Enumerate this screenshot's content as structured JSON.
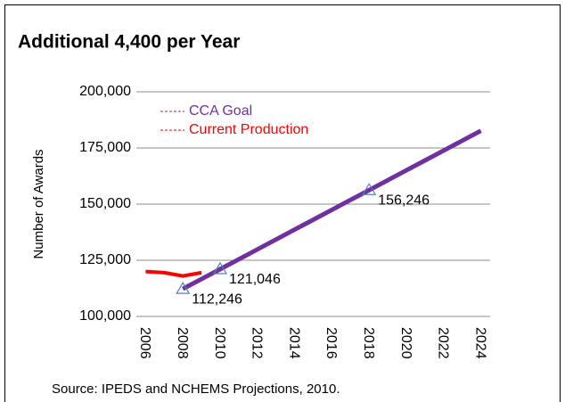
{
  "chart_data": {
    "type": "line",
    "title": "Additional 4,400 per Year",
    "y_label": "Number of Awards",
    "source": "Source:  IPEDS and NCHEMS Projections, 2010.",
    "categories": [
      "2006",
      null,
      "2008",
      null,
      "2010",
      null,
      "2012",
      null,
      "2014",
      null,
      "2016",
      null,
      "2018",
      null,
      "2020",
      null,
      "2022",
      null,
      "2024"
    ],
    "series": [
      {
        "name": "CCA Goal",
        "color": "#7030a0",
        "values": [
          null,
          null,
          112246,
          116646,
          121046,
          125446,
          129846,
          134246,
          138646,
          143046,
          147446,
          151846,
          156246,
          160646,
          165046,
          169446,
          173846,
          178246,
          182646
        ],
        "value_labels": [
          null,
          null,
          "112,246",
          null,
          "121,046",
          null,
          null,
          null,
          null,
          null,
          null,
          null,
          "156,246",
          null,
          null,
          null,
          null,
          null,
          null
        ]
      },
      {
        "name": "Current Production",
        "color": "#ff0000",
        "values": [
          120000,
          119500,
          118000,
          119500,
          null,
          null,
          null,
          null,
          null,
          null,
          null,
          null,
          null,
          null,
          null,
          null,
          null,
          null,
          null
        ]
      }
    ],
    "ylim": [
      100000,
      200000
    ],
    "yticks": [
      {
        "value": 100000,
        "label": "100,000"
      },
      {
        "value": 125000,
        "label": "125,000"
      },
      {
        "value": 150000,
        "label": "150,000"
      },
      {
        "value": 175000,
        "label": "175,000"
      },
      {
        "value": 200000,
        "label": "200,000"
      }
    ],
    "grid": true,
    "legend": "top-left",
    "marker_color": "#4f81bd"
  }
}
